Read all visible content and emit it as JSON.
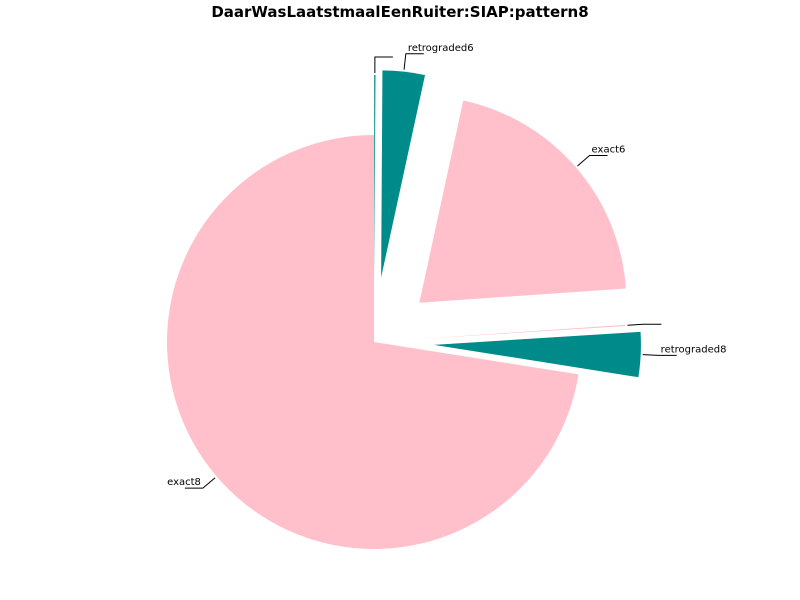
{
  "chart_data": {
    "type": "pie",
    "title": "DaarWasLaatstmaalEenRuiter:SIAP:pattern8",
    "labels": [
      "exact8",
      "retrograded8",
      "",
      "exact6",
      "retrograded6",
      ""
    ],
    "values": [
      72.5,
      3.5,
      0.1,
      20.5,
      3.3,
      0.1
    ],
    "colors": {
      "exact8": "#ffc0cb",
      "retrograded8": "#008b8b",
      "exact6": "#ffc0cb",
      "retrograded6": "#008b8b"
    },
    "exploded": true,
    "legend": "none"
  }
}
